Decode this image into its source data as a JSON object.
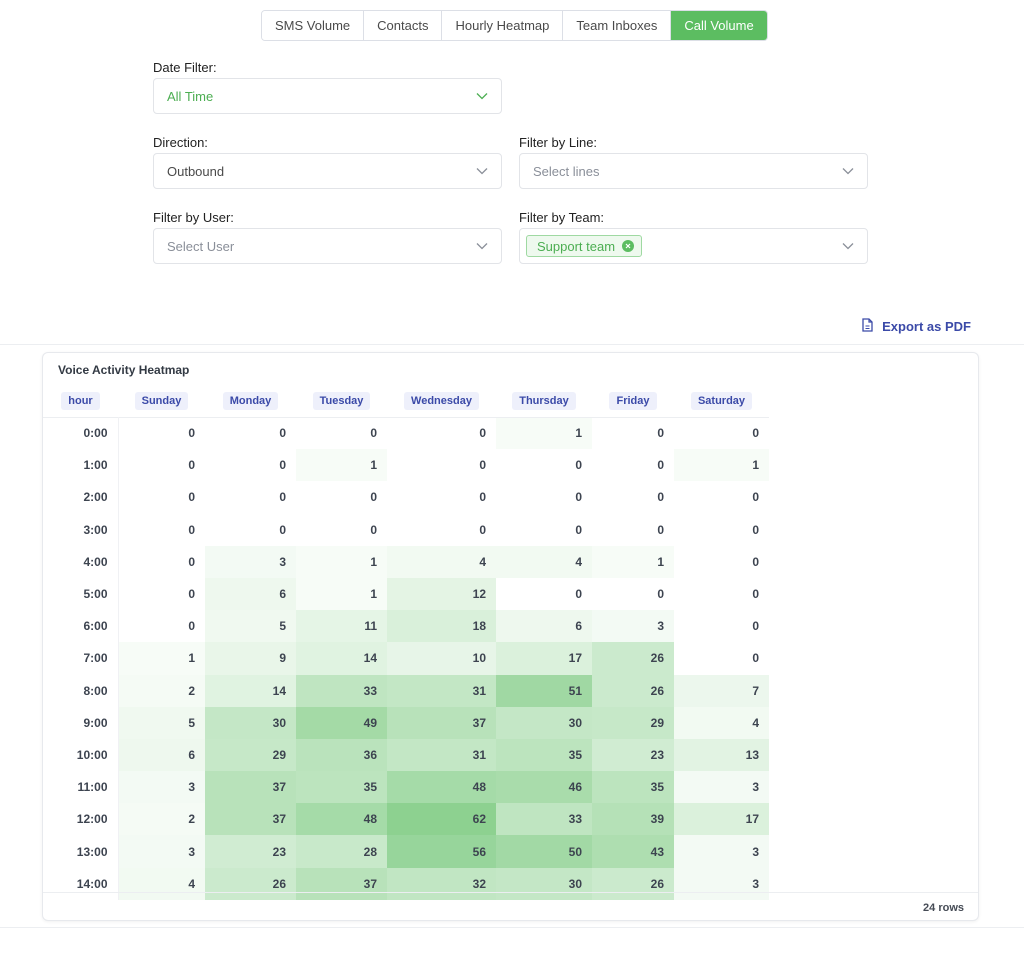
{
  "tabs": [
    {
      "label": "SMS Volume",
      "active": false
    },
    {
      "label": "Contacts",
      "active": false
    },
    {
      "label": "Hourly Heatmap",
      "active": false
    },
    {
      "label": "Team Inboxes",
      "active": false
    },
    {
      "label": "Call Volume",
      "active": true
    }
  ],
  "filters": {
    "date": {
      "label": "Date Filter:",
      "value": "All Time"
    },
    "direction": {
      "label": "Direction:",
      "value": "Outbound"
    },
    "line": {
      "label": "Filter by Line:",
      "placeholder": "Select lines"
    },
    "user": {
      "label": "Filter by User:",
      "placeholder": "Select User"
    },
    "team": {
      "label": "Filter by Team:",
      "tag": "Support team"
    }
  },
  "export_label": "Export as PDF",
  "heatmap": {
    "title": "Voice Activity Heatmap",
    "columns": [
      "hour",
      "Sunday",
      "Monday",
      "Tuesday",
      "Wednesday",
      "Thursday",
      "Friday",
      "Saturday"
    ],
    "rows": [
      {
        "hour": "0:00",
        "values": [
          0,
          0,
          0,
          0,
          1,
          0,
          0
        ]
      },
      {
        "hour": "1:00",
        "values": [
          0,
          0,
          1,
          0,
          0,
          0,
          1
        ]
      },
      {
        "hour": "2:00",
        "values": [
          0,
          0,
          0,
          0,
          0,
          0,
          0
        ]
      },
      {
        "hour": "3:00",
        "values": [
          0,
          0,
          0,
          0,
          0,
          0,
          0
        ]
      },
      {
        "hour": "4:00",
        "values": [
          0,
          3,
          1,
          4,
          4,
          1,
          0
        ]
      },
      {
        "hour": "5:00",
        "values": [
          0,
          6,
          1,
          12,
          0,
          0,
          0
        ]
      },
      {
        "hour": "6:00",
        "values": [
          0,
          5,
          11,
          18,
          6,
          3,
          0
        ]
      },
      {
        "hour": "7:00",
        "values": [
          1,
          9,
          14,
          10,
          17,
          26,
          0
        ]
      },
      {
        "hour": "8:00",
        "values": [
          2,
          14,
          33,
          31,
          51,
          26,
          7
        ]
      },
      {
        "hour": "9:00",
        "values": [
          5,
          30,
          49,
          37,
          30,
          29,
          4
        ]
      },
      {
        "hour": "10:00",
        "values": [
          6,
          29,
          36,
          31,
          35,
          23,
          13
        ]
      },
      {
        "hour": "11:00",
        "values": [
          3,
          37,
          35,
          48,
          46,
          35,
          3
        ]
      },
      {
        "hour": "12:00",
        "values": [
          2,
          37,
          48,
          62,
          33,
          39,
          17
        ]
      },
      {
        "hour": "13:00",
        "values": [
          3,
          23,
          28,
          56,
          50,
          43,
          3
        ]
      },
      {
        "hour": "14:00",
        "values": [
          4,
          26,
          37,
          32,
          30,
          26,
          3
        ]
      }
    ],
    "row_count": "24 rows",
    "max_value": 62,
    "accent_color": "#5cbd61"
  }
}
